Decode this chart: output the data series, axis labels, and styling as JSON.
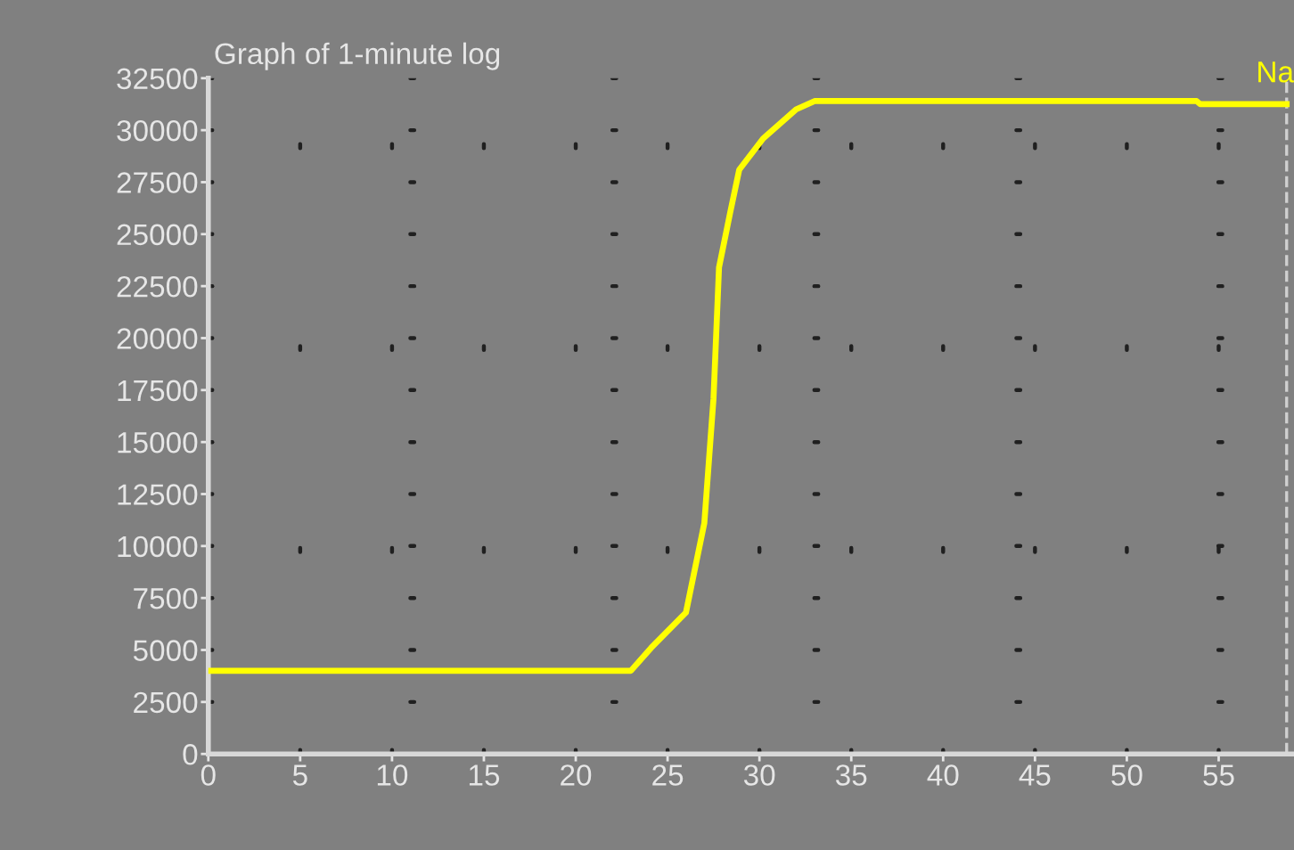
{
  "chart_data": {
    "type": "line",
    "title": "Graph of 1-minute log",
    "series": [
      {
        "name": "Na",
        "color": "#ffff00",
        "x": [
          0,
          23,
          24.1,
          26,
          27,
          27.5,
          27.8,
          28.4,
          28.9,
          30.2,
          32,
          33,
          53.8,
          54,
          58.7
        ],
        "values": [
          4000,
          4000,
          5100,
          6800,
          11100,
          17100,
          23400,
          26000,
          28100,
          29600,
          31000,
          31400,
          31400,
          31250,
          31250
        ]
      }
    ],
    "xlim": [
      0,
      59.1
    ],
    "xticks": [
      0,
      5,
      10,
      15,
      20,
      25,
      30,
      35,
      40,
      45,
      50,
      55
    ],
    "ylim": [
      0,
      32500
    ],
    "yticks": [
      0,
      2500,
      5000,
      7500,
      10000,
      12500,
      15000,
      17500,
      20000,
      22500,
      25000,
      27500,
      30000,
      32500
    ],
    "ref_lines": [
      {
        "axis": "x",
        "value": 58.7,
        "color": "#d0d0d0",
        "line_style": "dashed"
      }
    ],
    "grid": true,
    "marker": "none",
    "line_style": "solid"
  }
}
